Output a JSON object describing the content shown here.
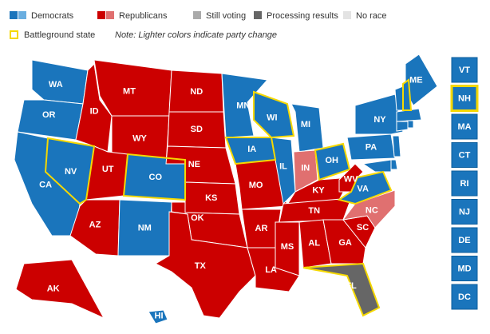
{
  "legend": [
    {
      "label": "Democrats",
      "colors": [
        "#1a75bc",
        "#6aaee0"
      ]
    },
    {
      "label": "Republicans",
      "colors": [
        "#cc0000",
        "#e07070"
      ]
    },
    {
      "label": "Still voting",
      "colors": [
        "#aaaaaa"
      ]
    },
    {
      "label": "Processing results",
      "colors": [
        "#666666"
      ]
    },
    {
      "label": "No race",
      "colors": [
        "#e3e3e3"
      ]
    }
  ],
  "battleground_legend": {
    "label": "Battleground state",
    "color": "#f5d800"
  },
  "note": "Note: Lighter colors indicate party change",
  "states": [
    {
      "label": "WA",
      "color": "#1a75bc",
      "battleground": false
    },
    {
      "label": "OR",
      "color": "#1a75bc",
      "battleground": false
    },
    {
      "label": "CA",
      "color": "#1a75bc",
      "battleground": false
    },
    {
      "label": "NV",
      "color": "#1a75bc",
      "battleground": true
    },
    {
      "label": "ID",
      "color": "#cc0000",
      "battleground": false
    },
    {
      "label": "MT",
      "color": "#cc0000",
      "battleground": false
    },
    {
      "label": "WY",
      "color": "#cc0000",
      "battleground": false
    },
    {
      "label": "UT",
      "color": "#cc0000",
      "battleground": false
    },
    {
      "label": "CO",
      "color": "#1a75bc",
      "battleground": true
    },
    {
      "label": "AZ",
      "color": "#cc0000",
      "battleground": false
    },
    {
      "label": "NM",
      "color": "#1a75bc",
      "battleground": false
    },
    {
      "label": "ND",
      "color": "#cc0000",
      "battleground": false
    },
    {
      "label": "SD",
      "color": "#cc0000",
      "battleground": false
    },
    {
      "label": "NE",
      "color": "#cc0000",
      "battleground": false
    },
    {
      "label": "KS",
      "color": "#cc0000",
      "battleground": false
    },
    {
      "label": "OK",
      "color": "#cc0000",
      "battleground": false
    },
    {
      "label": "TX",
      "color": "#cc0000",
      "battleground": false
    },
    {
      "label": "MN",
      "color": "#1a75bc",
      "battleground": false
    },
    {
      "label": "IA",
      "color": "#1a75bc",
      "battleground": true
    },
    {
      "label": "MO",
      "color": "#cc0000",
      "battleground": false
    },
    {
      "label": "AR",
      "color": "#cc0000",
      "battleground": false
    },
    {
      "label": "LA",
      "color": "#cc0000",
      "battleground": false
    },
    {
      "label": "WI",
      "color": "#1a75bc",
      "battleground": true
    },
    {
      "label": "IL",
      "color": "#1a75bc",
      "battleground": false
    },
    {
      "label": "MI",
      "color": "#1a75bc",
      "battleground": false
    },
    {
      "label": "IN",
      "color": "#e07070",
      "battleground": false
    },
    {
      "label": "OH",
      "color": "#1a75bc",
      "battleground": true
    },
    {
      "label": "KY",
      "color": "#cc0000",
      "battleground": false
    },
    {
      "label": "TN",
      "color": "#cc0000",
      "battleground": false
    },
    {
      "label": "MS",
      "color": "#cc0000",
      "battleground": false
    },
    {
      "label": "AL",
      "color": "#cc0000",
      "battleground": false
    },
    {
      "label": "GA",
      "color": "#cc0000",
      "battleground": false
    },
    {
      "label": "FL",
      "color": "#666666",
      "battleground": true
    },
    {
      "label": "SC",
      "color": "#cc0000",
      "battleground": false
    },
    {
      "label": "NC",
      "color": "#e07070",
      "battleground": false
    },
    {
      "label": "VA",
      "color": "#1a75bc",
      "battleground": true
    },
    {
      "label": "WV",
      "color": "#cc0000",
      "battleground": false
    },
    {
      "label": "PA",
      "color": "#1a75bc",
      "battleground": false
    },
    {
      "label": "NY",
      "color": "#1a75bc",
      "battleground": false
    },
    {
      "label": "ME",
      "color": "#1a75bc",
      "battleground": false
    },
    {
      "label": "AK",
      "color": "#cc0000",
      "battleground": false
    },
    {
      "label": "HI",
      "color": "#1a75bc",
      "battleground": false
    },
    {
      "label": null,
      "color": "#1a75bc",
      "battleground": false
    },
    {
      "label": null,
      "color": "#1a75bc",
      "battleground": true
    },
    {
      "label": null,
      "color": "#1a75bc",
      "battleground": false
    },
    {
      "label": null,
      "color": "#1a75bc",
      "battleground": false
    },
    {
      "label": null,
      "color": "#1a75bc",
      "battleground": false
    },
    {
      "label": null,
      "color": "#1a75bc",
      "battleground": false
    },
    {
      "label": null,
      "color": "#1a75bc",
      "battleground": false
    },
    {
      "label": null,
      "color": "#1a75bc",
      "battleground": false
    }
  ],
  "side_states": [
    {
      "label": "VT",
      "color": "#1a75bc",
      "battleground": false
    },
    {
      "label": "NH",
      "color": "#1a75bc",
      "battleground": true
    },
    {
      "label": "MA",
      "color": "#1a75bc",
      "battleground": false
    },
    {
      "label": "CT",
      "color": "#1a75bc",
      "battleground": false
    },
    {
      "label": "RI",
      "color": "#1a75bc",
      "battleground": false
    },
    {
      "label": "NJ",
      "color": "#1a75bc",
      "battleground": false
    },
    {
      "label": "DE",
      "color": "#1a75bc",
      "battleground": false
    },
    {
      "label": "MD",
      "color": "#1a75bc",
      "battleground": false
    },
    {
      "label": "DC",
      "color": "#1a75bc",
      "battleground": false
    }
  ]
}
